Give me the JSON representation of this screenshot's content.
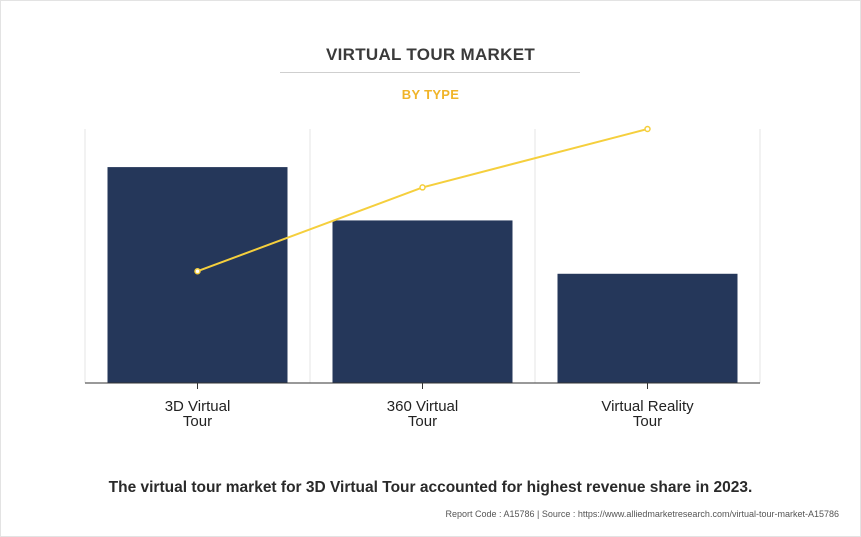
{
  "header": {
    "title": "VIRTUAL TOUR MARKET",
    "subtitle": "BY TYPE"
  },
  "colors": {
    "bar": "#25375a",
    "line": "#f5cf3d",
    "subtitle": "#f0b429",
    "grid": "#e6e6e6",
    "axis": "#333333"
  },
  "chart_data": {
    "type": "bar",
    "categories": [
      [
        "3D Virtual",
        "Tour"
      ],
      [
        "360 Virtual",
        "Tour"
      ],
      [
        "Virtual Reality",
        "Tour"
      ]
    ],
    "series": [
      {
        "type": "bar",
        "values": [
          85,
          64,
          43
        ]
      },
      {
        "type": "line",
        "values": [
          44,
          77,
          100
        ]
      }
    ],
    "ylim": [
      0,
      100
    ],
    "xlabel": "",
    "ylabel": "",
    "grid": true,
    "legend": "none"
  },
  "caption": "The virtual tour market for 3D Virtual Tour accounted for highest revenue share in 2023.",
  "footnote": "Report Code : A15786  |  Source : https://www.alliedmarketresearch.com/virtual-tour-market-A15786"
}
